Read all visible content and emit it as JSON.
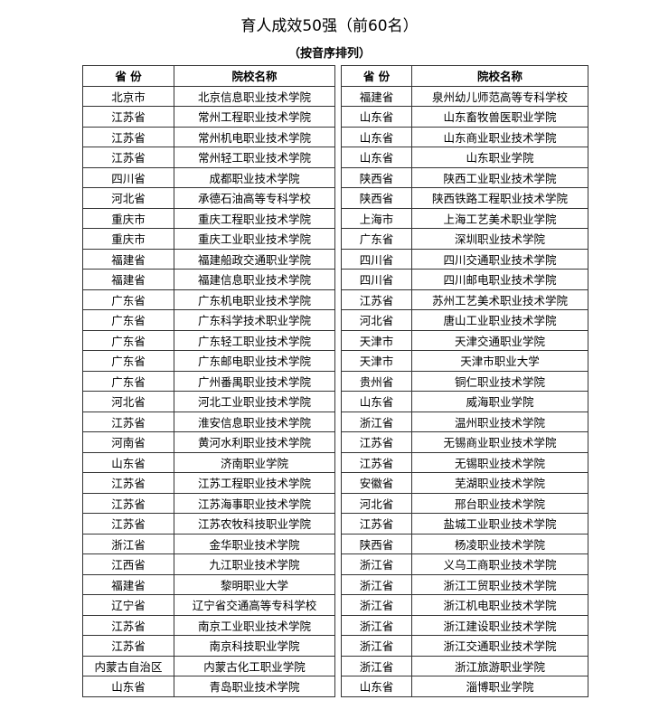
{
  "title": "育人成效50强（前60名）",
  "subtitle": "（按音序排列）",
  "headers": {
    "province": "省 份",
    "school": "院校名称"
  },
  "left_rows": [
    [
      "北京市",
      "北京信息职业技术学院"
    ],
    [
      "江苏省",
      "常州工程职业技术学院"
    ],
    [
      "江苏省",
      "常州机电职业技术学院"
    ],
    [
      "江苏省",
      "常州轻工职业技术学院"
    ],
    [
      "四川省",
      "成都职业技术学院"
    ],
    [
      "河北省",
      "承德石油高等专科学校"
    ],
    [
      "重庆市",
      "重庆工程职业技术学院"
    ],
    [
      "重庆市",
      "重庆工业职业技术学院"
    ],
    [
      "福建省",
      "福建船政交通职业学院"
    ],
    [
      "福建省",
      "福建信息职业技术学院"
    ],
    [
      "广东省",
      "广东机电职业技术学院"
    ],
    [
      "广东省",
      "广东科学技术职业学院"
    ],
    [
      "广东省",
      "广东轻工职业技术学院"
    ],
    [
      "广东省",
      "广东邮电职业技术学院"
    ],
    [
      "广东省",
      "广州番禺职业技术学院"
    ],
    [
      "河北省",
      "河北工业职业技术学院"
    ],
    [
      "江苏省",
      "淮安信息职业技术学院"
    ],
    [
      "河南省",
      "黄河水利职业技术学院"
    ],
    [
      "山东省",
      "济南职业学院"
    ],
    [
      "江苏省",
      "江苏工程职业技术学院"
    ],
    [
      "江苏省",
      "江苏海事职业技术学院"
    ],
    [
      "江苏省",
      "江苏农牧科技职业学院"
    ],
    [
      "浙江省",
      "金华职业技术学院"
    ],
    [
      "江西省",
      "九江职业技术学院"
    ],
    [
      "福建省",
      "黎明职业大学"
    ],
    [
      "辽宁省",
      "辽宁省交通高等专科学校"
    ],
    [
      "江苏省",
      "南京工业职业技术学院"
    ],
    [
      "江苏省",
      "南京科技职业学院"
    ],
    [
      "内蒙古自治区",
      "内蒙古化工职业学院"
    ],
    [
      "山东省",
      "青岛职业技术学院"
    ]
  ],
  "right_rows": [
    [
      "福建省",
      "泉州幼儿师范高等专科学校"
    ],
    [
      "山东省",
      "山东畜牧兽医职业学院"
    ],
    [
      "山东省",
      "山东商业职业技术学院"
    ],
    [
      "山东省",
      "山东职业学院"
    ],
    [
      "陕西省",
      "陕西工业职业技术学院"
    ],
    [
      "陕西省",
      "陕西铁路工程职业技术学院"
    ],
    [
      "上海市",
      "上海工艺美术职业学院"
    ],
    [
      "广东省",
      "深圳职业技术学院"
    ],
    [
      "四川省",
      "四川交通职业技术学院"
    ],
    [
      "四川省",
      "四川邮电职业技术学院"
    ],
    [
      "江苏省",
      "苏州工艺美术职业技术学院"
    ],
    [
      "河北省",
      "唐山工业职业技术学院"
    ],
    [
      "天津市",
      "天津交通职业学院"
    ],
    [
      "天津市",
      "天津市职业大学"
    ],
    [
      "贵州省",
      "铜仁职业技术学院"
    ],
    [
      "山东省",
      "威海职业学院"
    ],
    [
      "浙江省",
      "温州职业技术学院"
    ],
    [
      "江苏省",
      "无锡商业职业技术学院"
    ],
    [
      "江苏省",
      "无锡职业技术学院"
    ],
    [
      "安徽省",
      "芜湖职业技术学院"
    ],
    [
      "河北省",
      "邢台职业技术学院"
    ],
    [
      "江苏省",
      "盐城工业职业技术学院"
    ],
    [
      "陕西省",
      "杨凌职业技术学院"
    ],
    [
      "浙江省",
      "义乌工商职业技术学院"
    ],
    [
      "浙江省",
      "浙江工贸职业技术学院"
    ],
    [
      "浙江省",
      "浙江机电职业技术学院"
    ],
    [
      "浙江省",
      "浙江建设职业技术学院"
    ],
    [
      "浙江省",
      "浙江交通职业技术学院"
    ],
    [
      "浙江省",
      "浙江旅游职业学院"
    ],
    [
      "山东省",
      "淄博职业学院"
    ]
  ]
}
